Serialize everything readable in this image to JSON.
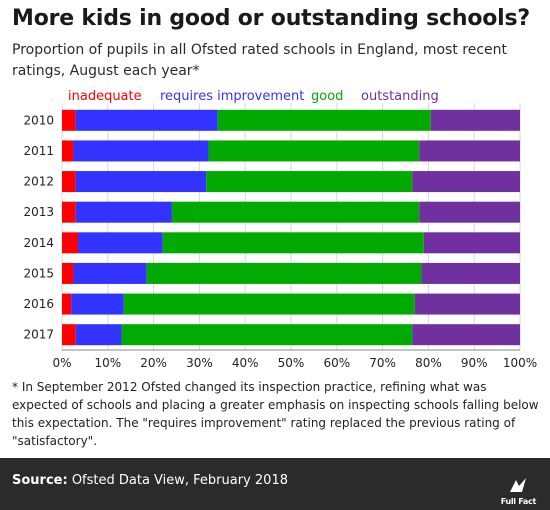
{
  "title": "More kids in good or outstanding schools?",
  "subtitle": "Proportion of pupils in all Ofsted rated schools in England, most recent ratings, August each year*",
  "footnote": "* In September 2012 Ofsted changed its inspection practice, refining what was expected of schools and placing a greater emphasis on inspecting schools falling below this expectation. The \"requires improvement\" rating replaced the previous rating of \"satisfactory\".",
  "footer": {
    "source_label": "Source:",
    "source_text": " Ofsted Data View, February 2018",
    "logo_text": "Full Fact"
  },
  "colors": {
    "inadequate": "#ff0000",
    "requires improvement": "#3333ff",
    "good": "#00aa00",
    "outstanding": "#7030a0"
  },
  "chart_data": {
    "type": "bar",
    "orientation": "horizontal",
    "stacked": true,
    "categories": [
      "2010",
      "2011",
      "2012",
      "2013",
      "2014",
      "2015",
      "2016",
      "2017"
    ],
    "series": [
      {
        "name": "inadequate",
        "values": [
          3,
          2.5,
          3,
          3,
          3.5,
          2.5,
          2,
          3
        ]
      },
      {
        "name": "requires improvement",
        "values": [
          31,
          29.5,
          28.5,
          21,
          18.5,
          16,
          11.5,
          10
        ]
      },
      {
        "name": "good",
        "values": [
          46.5,
          46,
          45,
          54,
          57,
          60,
          63.5,
          63.5
        ]
      },
      {
        "name": "outstanding",
        "values": [
          19.5,
          22,
          23.5,
          22,
          21,
          21.5,
          23,
          23.5
        ]
      }
    ],
    "x_ticks": [
      "0%",
      "10%",
      "20%",
      "30%",
      "40%",
      "50%",
      "60%",
      "70%",
      "80%",
      "90%",
      "100%"
    ],
    "xlim": [
      0,
      100
    ],
    "legend_position": "top",
    "grid": true
  }
}
